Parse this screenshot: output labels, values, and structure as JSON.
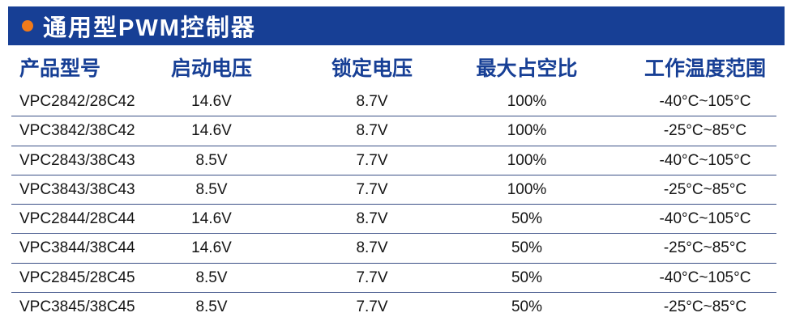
{
  "title": {
    "text": "通用型PWM控制器",
    "dot_icon": "orange-bullet-icon",
    "bar_color": "#173f95",
    "dot_color": "#f07a1a"
  },
  "table": {
    "headers": [
      "产品型号",
      "启动电压",
      "锁定电压",
      "最大占空比",
      "工作温度范围"
    ],
    "rows": [
      [
        "VPC2842/28C42",
        "14.6V",
        "8.7V",
        "100%",
        "-40°C~105°C"
      ],
      [
        "VPC3842/38C42",
        "14.6V",
        "8.7V",
        "100%",
        "-25°C~85°C"
      ],
      [
        "VPC2843/38C43",
        "8.5V",
        "7.7V",
        "100%",
        "-40°C~105°C"
      ],
      [
        "VPC3843/38C43",
        "8.5V",
        "7.7V",
        "100%",
        "-25°C~85°C"
      ],
      [
        "VPC2844/28C44",
        "14.6V",
        "8.7V",
        "50%",
        "-40°C~105°C"
      ],
      [
        "VPC3844/38C44",
        "14.6V",
        "8.7V",
        "50%",
        "-25°C~85°C"
      ],
      [
        "VPC2845/28C45",
        "8.5V",
        "7.7V",
        "50%",
        "-40°C~105°C"
      ],
      [
        "VPC3845/38C45",
        "8.5V",
        "7.7V",
        "50%",
        "-25°C~85°C"
      ]
    ]
  }
}
